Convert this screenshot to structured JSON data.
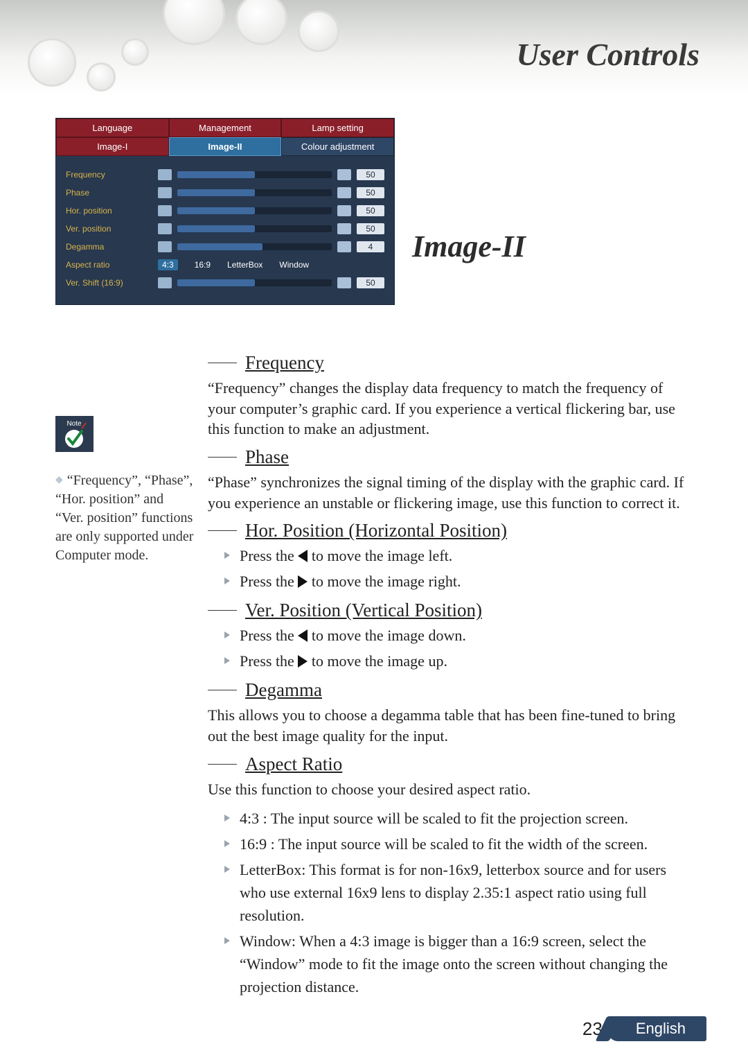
{
  "header": {
    "title": "User Controls"
  },
  "osd": {
    "tabs_row1": [
      "Language",
      "Management",
      "Lamp setting"
    ],
    "tabs_row2": [
      "Image-I",
      "Image-II",
      "Colour adjustment"
    ],
    "active_tab_index": 4,
    "rows": [
      {
        "label": "Frequency",
        "value": "50",
        "fill_pct": 50
      },
      {
        "label": "Phase",
        "value": "50",
        "fill_pct": 50
      },
      {
        "label": "Hor. position",
        "value": "50",
        "fill_pct": 50
      },
      {
        "label": "Ver. position",
        "value": "50",
        "fill_pct": 50
      },
      {
        "label": "Degamma",
        "value": "4",
        "fill_pct": 55
      }
    ],
    "aspect": {
      "label": "Aspect ratio",
      "options": [
        "4:3",
        "16:9",
        "LetterBox",
        "Window"
      ],
      "selected_index": 0
    },
    "vshift": {
      "label": "Ver. Shift (16:9)",
      "value": "50",
      "fill_pct": 50
    },
    "colors": {
      "panel_bg": "#27384f",
      "tab_red": "#8a1f2a",
      "tab_blue": "#2f4766",
      "tab_active": "#2f6fa0",
      "label_gold": "#d9b44a",
      "track_bg": "#1a2535",
      "track_fill": "#3f6aa0",
      "valuebox_bg": "#dfe6ee"
    }
  },
  "section_heading": "Image-II",
  "note_badge": "Note",
  "side_note_text": "“Frequency”, “Phase”, “Hor. position” and “Ver. position” functions are only supported under Computer mode.",
  "sections": {
    "frequency": {
      "title": "Frequency",
      "para": "“Frequency” changes the display data frequency to match the frequency of your computer’s graphic card. If you experience a vertical flickering bar, use this function to make an adjustment."
    },
    "phase": {
      "title": "Phase",
      "para": "“Phase” synchronizes the signal timing of the display with the graphic card. If you experience an unstable or flickering image, use this function to correct it."
    },
    "hor": {
      "title": "Hor. Position (Horizontal Position)",
      "b1a": "Press the ",
      "b1b": " to move the image left.",
      "b2a": "Press the ",
      "b2b": " to move the image right."
    },
    "ver": {
      "title": "Ver. Position (Vertical Position)",
      "b1a": "Press the ",
      "b1b": " to move the image down.",
      "b2a": "Press the ",
      "b2b": " to move the image up."
    },
    "degamma": {
      "title": "Degamma",
      "para": "This allows you to choose a degamma table that has been fine-tuned to bring out the best image quality for the input."
    },
    "aspect": {
      "title": "Aspect Ratio",
      "para": "Use this function to choose your desired aspect ratio.",
      "items": [
        "4:3 : The input source will be scaled to fit the projection screen.",
        "16:9 : The input source will be scaled to fit the width of the screen.",
        "LetterBox: This format is for non-16x9, letterbox source and for users who use external 16x9 lens to display 2.35:1 aspect ratio using full resolution.",
        "Window: When a 4:3 image is bigger than a 16:9 screen, select the “Window” mode to fit the image onto the screen without changing the projection distance."
      ]
    }
  },
  "footer": {
    "page": "23",
    "lang": "English",
    "lang_bg": "#2f4766"
  }
}
